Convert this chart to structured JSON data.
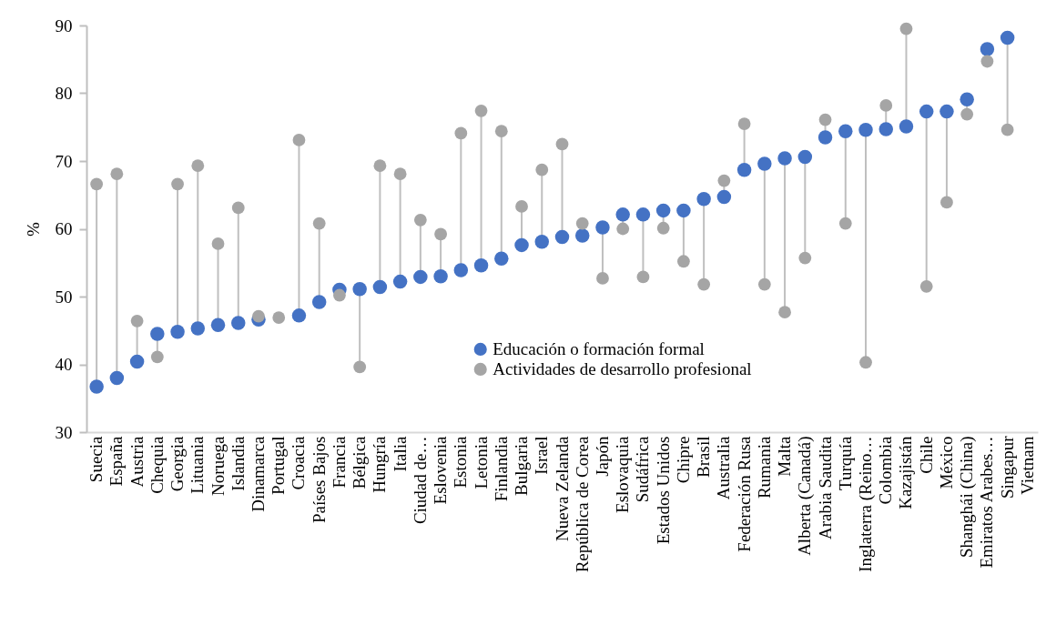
{
  "chart_data": {
    "type": "scatter",
    "ylabel": "%",
    "categories": [
      "Suecia",
      "España",
      "Austria",
      "Chequia",
      "Georgia",
      "Lituania",
      "Noruega",
      "Islandia",
      "Dinamarca",
      "Portugal",
      "Croacia",
      "Países Bajos",
      "Francia",
      "Bélgica",
      "Hungría",
      "Italia",
      "Ciudad de…",
      "Eslovenia",
      "Estonia",
      "Letonia",
      "Finlandia",
      "Bulgaria",
      "Israel",
      "Nueva Zelanda",
      "República de Corea",
      "Japón",
      "Eslovaquia",
      "Sudáfrica",
      "Estados Unidos",
      "Chipre",
      "Brasil",
      "Australia",
      "Federación Rusa",
      "Rumania",
      "Malta",
      "Alberta (Canadá)",
      "Arabia Saudita",
      "Turquía",
      "Inglaterra (Reino…",
      "Colombia",
      "Kazajistán",
      "Chile",
      "México",
      "Shanghái (China)",
      "Emiratos Arabes…",
      "Singapur",
      "Vietnam"
    ],
    "series": [
      {
        "name": "Educación o formación formal",
        "color": "#4472c4",
        "values": [
          36.7,
          38.0,
          40.4,
          44.5,
          44.8,
          45.3,
          45.8,
          46.1,
          46.6,
          null,
          47.2,
          49.2,
          51.0,
          51.1,
          51.4,
          52.2,
          52.9,
          53.0,
          53.9,
          54.6,
          55.6,
          57.6,
          58.1,
          58.8,
          59.0,
          60.2,
          62.1,
          62.1,
          62.7,
          62.7,
          64.4,
          64.7,
          68.7,
          69.6,
          70.4,
          70.6,
          73.5,
          74.4,
          74.6,
          74.7,
          75.1,
          77.3,
          77.3,
          79.1,
          86.5,
          88.2,
          null
        ]
      },
      {
        "name": "Actividades de desarrollo profesional",
        "color": "#a5a5a5",
        "values": [
          66.6,
          68.1,
          46.4,
          41.1,
          66.6,
          69.3,
          57.8,
          63.1,
          47.1,
          46.9,
          73.1,
          60.8,
          50.2,
          39.6,
          69.3,
          68.1,
          61.3,
          59.2,
          74.1,
          77.4,
          74.4,
          63.3,
          68.7,
          72.5,
          60.8,
          52.7,
          60.0,
          52.9,
          60.1,
          55.2,
          51.8,
          67.1,
          75.5,
          51.8,
          47.7,
          55.7,
          76.1,
          60.8,
          40.3,
          78.2,
          89.5,
          51.5,
          63.9,
          76.9,
          84.7,
          74.6,
          null
        ]
      }
    ],
    "ylim": [
      30,
      90
    ],
    "yticks": [
      30,
      40,
      50,
      60,
      70,
      80,
      90
    ],
    "grid": false,
    "legend": "bottom",
    "marker": "circle"
  }
}
